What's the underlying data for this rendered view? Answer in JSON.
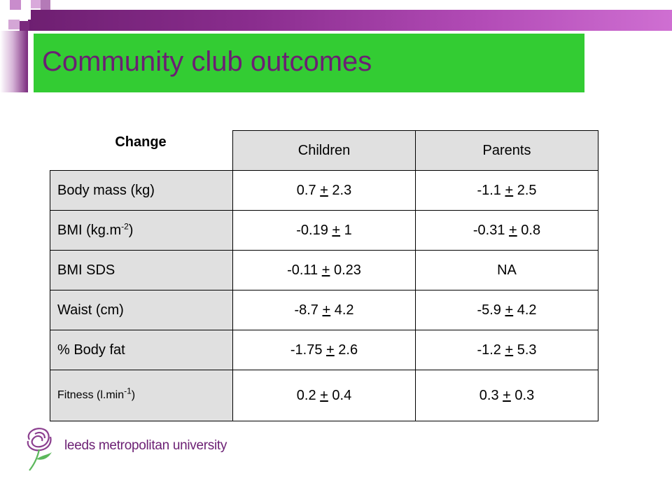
{
  "title": "Community club outcomes",
  "table": {
    "corner_label": "Change",
    "columns": [
      "Children",
      "Parents"
    ],
    "rows": [
      {
        "label": "Body mass (kg)",
        "sup": "",
        "label_suffix": "",
        "children": {
          "mean": "0.7",
          "pm": "+",
          "sd": "2.3"
        },
        "parents": {
          "mean": "-1.1",
          "pm": "+",
          "sd": "2.5"
        }
      },
      {
        "label": "BMI (kg.m",
        "sup": "-2",
        "label_suffix": ")",
        "children": {
          "mean": "-0.19",
          "pm": "+",
          "sd": "1"
        },
        "parents": {
          "mean": "-0.31",
          "pm": "+",
          "sd": "0.8"
        }
      },
      {
        "label": "BMI SDS",
        "sup": "",
        "label_suffix": "",
        "children": {
          "mean": "-0.11",
          "pm": "+",
          "sd": "0.23"
        },
        "parents": {
          "mean": "NA",
          "pm": "",
          "sd": ""
        }
      },
      {
        "label": "Waist (cm)",
        "sup": "",
        "label_suffix": "",
        "children": {
          "mean": "-8.7",
          "pm": "+",
          "sd": "4.2"
        },
        "parents": {
          "mean": "-5.9",
          "pm": "+",
          "sd": "4.2"
        }
      },
      {
        "label": "% Body fat",
        "sup": "",
        "label_suffix": "",
        "children": {
          "mean": "-1.75",
          "pm": "+",
          "sd": "2.6"
        },
        "parents": {
          "mean": "-1.2",
          "pm": "+",
          "sd": "5.3"
        }
      },
      {
        "label": "Fitness (l.min",
        "sup": "-1",
        "label_suffix": ")",
        "children": {
          "mean": "0.2",
          "pm": "+",
          "sd": "0.4"
        },
        "parents": {
          "mean": "0.3",
          "pm": "+",
          "sd": "0.3"
        }
      }
    ]
  },
  "logo": {
    "text": "leeds metropolitan university",
    "icon": "rose-logo-icon"
  },
  "colors": {
    "title_bar": "#33cc33",
    "title_text": "#6b1f73",
    "band": "#8a2d8e",
    "cell_gray": "#e0e0e0"
  }
}
